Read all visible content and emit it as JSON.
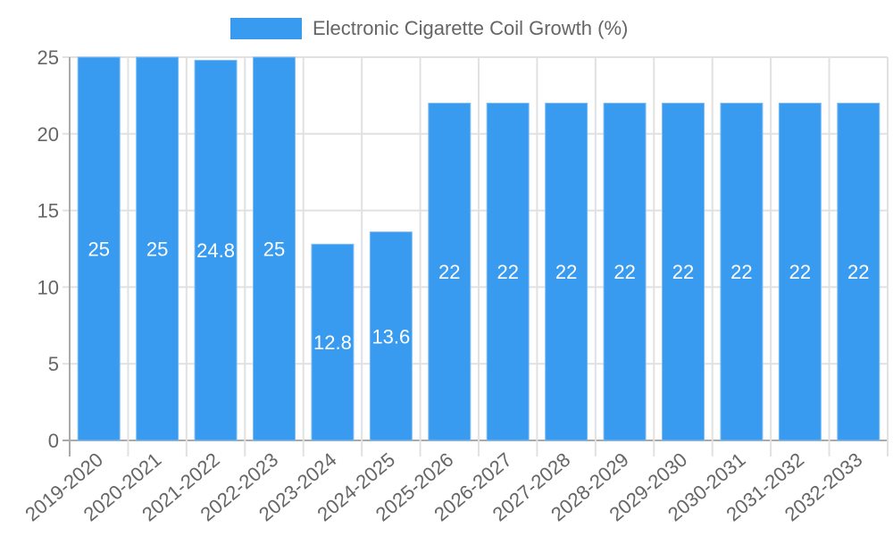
{
  "legend": {
    "label": "Electronic Cigarette Coil Growth (%)",
    "color": "#389bf0"
  },
  "chart_data": {
    "type": "bar",
    "title": "",
    "xlabel": "",
    "ylabel": "",
    "ylim": [
      0,
      25
    ],
    "yticks": [
      0,
      5,
      10,
      15,
      20,
      25
    ],
    "grid": true,
    "legend_position": "top",
    "categories": [
      "2019-2020",
      "2020-2021",
      "2021-2022",
      "2022-2023",
      "2023-2024",
      "2024-2025",
      "2025-2026",
      "2026-2027",
      "2027-2028",
      "2028-2029",
      "2029-2030",
      "2030-2031",
      "2031-2032",
      "2032-2033"
    ],
    "series": [
      {
        "name": "Electronic Cigarette Coil Growth (%)",
        "color": "#389bf0",
        "values": [
          25,
          25,
          24.8,
          25,
          12.8,
          13.6,
          22,
          22,
          22,
          22,
          22,
          22,
          22,
          22
        ],
        "labels": [
          "25",
          "25",
          "24.8",
          "25",
          "12.8",
          "13.6",
          "22",
          "22",
          "22",
          "22",
          "22",
          "22",
          "22",
          "22"
        ]
      }
    ]
  }
}
